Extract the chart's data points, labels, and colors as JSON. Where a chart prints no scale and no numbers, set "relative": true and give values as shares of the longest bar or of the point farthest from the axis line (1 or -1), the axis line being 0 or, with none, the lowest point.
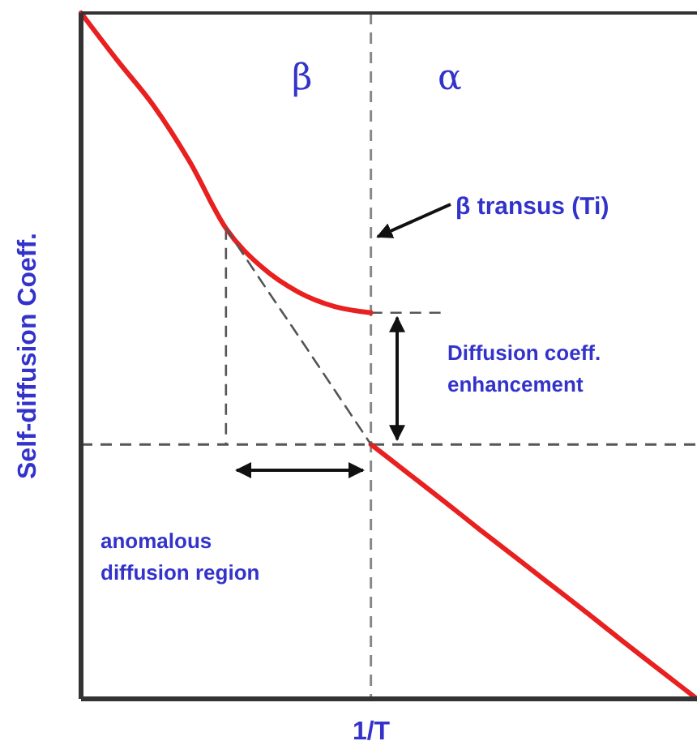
{
  "chart_data": {
    "type": "line",
    "relative": true,
    "xlabel": "1/T",
    "ylabel": "Self-diffusion Coeff.",
    "marker": "none",
    "categories": [
      null,
      null,
      null,
      null,
      null,
      null,
      null,
      null,
      null,
      null,
      null,
      null,
      null,
      null,
      null,
      null,
      null,
      null
    ],
    "series": [
      {
        "color": "#e8201f",
        "values": [
          1,
          0.931,
          0.865,
          0.783,
          0.686,
          0.629,
          0.593,
          0.572,
          0.563,
          null,
          null,
          null,
          null,
          null,
          null,
          null,
          null,
          null
        ]
      },
      {
        "color": "#e8201f",
        "values": [
          null,
          null,
          null,
          null,
          null,
          null,
          null,
          null,
          0.371,
          0.33,
          0.289,
          0.247,
          0.206,
          0.165,
          0.124,
          0.082,
          0.041,
          0
        ]
      },
      {
        "color": "#555555",
        "line_style": "dashed",
        "values": [
          null,
          null,
          null,
          null,
          0.686,
          0.607,
          0.529,
          0.45,
          0.371,
          null,
          null,
          null,
          null,
          null,
          null,
          null,
          null,
          null
        ]
      }
    ],
    "ref_lines": [
      {
        "axis": "y",
        "value": 0.371,
        "color": "#555555",
        "line_style": "dashed"
      }
    ],
    "annotations": [
      "β",
      "α",
      "β transus (Ti)",
      "Diffusion coeff. enhancement",
      "anomalous diffusion region"
    ]
  }
}
